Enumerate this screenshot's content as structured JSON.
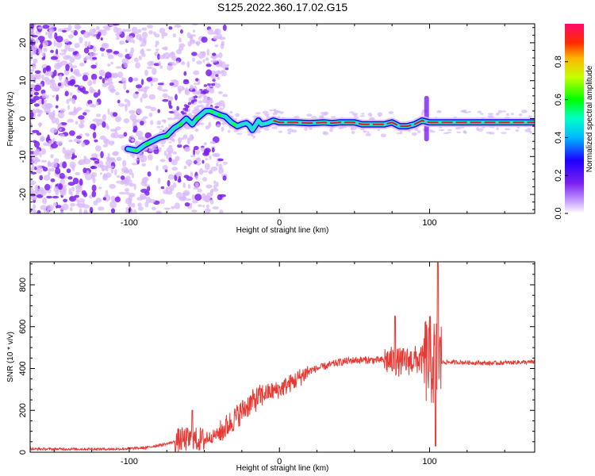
{
  "title": "S125.2022.360.17.02.G15",
  "colors": {
    "snr_line": "#e83a35",
    "ridge_core": "#d81e1e",
    "ridge_mid": "#22dfd2",
    "ridge_outer": "#1d00ff",
    "scatter_dark": "#7a1ff0",
    "scatter_light": "#d9b8fb"
  },
  "chart_data": [
    {
      "type": "heatmap",
      "xlabel": "Height of straight line (km)",
      "ylabel": "Frequency (Hz)",
      "xlim": [
        -166,
        170
      ],
      "ylim": [
        -25,
        25
      ],
      "xticks": [
        -100,
        0,
        100
      ],
      "xtick_labels": [
        "-100",
        "0",
        "100"
      ],
      "yticks": [
        -20,
        -10,
        0,
        10,
        20
      ],
      "ytick_labels": [
        "-20",
        "-10",
        "0",
        "10",
        "20"
      ],
      "colorscale": "rainbow",
      "colorbar": {
        "label": "Normalized spectral amplitude",
        "range": [
          0,
          1
        ],
        "ticks": [
          0.0,
          0.2,
          0.4,
          0.6,
          0.8
        ],
        "tick_labels": [
          "0.0",
          "0.2",
          "0.4",
          "0.6",
          "0.8"
        ]
      },
      "ridge": {
        "x": [
          -101,
          -95,
          -90,
          -85,
          -80,
          -75,
          -70,
          -66,
          -62,
          -58,
          -55,
          -52,
          -49,
          -46,
          -43,
          -40,
          -36,
          -32,
          -28,
          -25,
          -22,
          -20,
          -18,
          -16,
          -14,
          -12,
          -8,
          -4,
          0,
          10,
          20,
          30,
          35,
          40,
          50,
          55,
          60,
          70,
          75,
          80,
          85,
          90,
          95,
          100,
          110,
          120,
          140,
          160,
          170
        ],
        "y": [
          -8,
          -8.5,
          -7,
          -6,
          -5,
          -4.5,
          -2.5,
          -1.5,
          0,
          -1.5,
          0,
          1,
          2,
          2,
          1.5,
          1,
          0.5,
          -1,
          -2,
          -1.5,
          -1.2,
          -1.8,
          -3,
          -1.8,
          -0.5,
          -1.5,
          -1.2,
          -0.5,
          -1,
          -1,
          -1.2,
          -1,
          -1.2,
          -1,
          -1,
          -1.5,
          -1.5,
          -1.5,
          -1,
          -2,
          -2,
          -1.5,
          -0.5,
          -1,
          -1,
          -1,
          -1,
          -1,
          -1
        ]
      }
    },
    {
      "type": "line",
      "xlabel": "Height of straight line (km)",
      "ylabel": "SNR (10 * v/v)",
      "xlim": [
        -166,
        170
      ],
      "ylim": [
        0,
        910
      ],
      "xticks": [
        -100,
        0,
        100
      ],
      "xtick_labels": [
        "-100",
        "0",
        "100"
      ],
      "yticks": [
        0,
        200,
        400,
        600,
        800
      ],
      "ytick_labels": [
        "0",
        "200",
        "400",
        "600",
        "800"
      ],
      "series": [
        {
          "trend_x": [
            -166,
            -110,
            -90,
            -75,
            -65,
            -50,
            -40,
            -30,
            -20,
            -10,
            0,
            10,
            20,
            30,
            40,
            50,
            60,
            70,
            80,
            90,
            95,
            100,
            103,
            105,
            108,
            120,
            140,
            160,
            170
          ],
          "trend_y": [
            15,
            15,
            20,
            40,
            60,
            60,
            90,
            160,
            230,
            280,
            300,
            340,
            390,
            410,
            430,
            440,
            440,
            440,
            430,
            440,
            440,
            440,
            430,
            430,
            430,
            430,
            425,
            430,
            430
          ]
        }
      ]
    }
  ]
}
